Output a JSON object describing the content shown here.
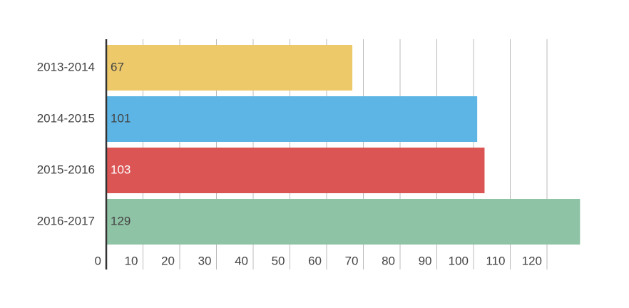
{
  "chart_data": {
    "type": "hbar",
    "categories": [
      "2013-2014",
      "2014-2015",
      "2015-2016",
      "2016-2017"
    ],
    "values": [
      67,
      101,
      103,
      129
    ],
    "colors": [
      "#edc96a",
      "#5db5e5",
      "#db5555",
      "#8fc3a6"
    ],
    "label_colors": [
      "#444444",
      "#444444",
      "#ffffff",
      "#444444"
    ],
    "xlim": [
      0,
      130
    ],
    "xticks": [
      0,
      10,
      20,
      30,
      40,
      50,
      60,
      70,
      80,
      90,
      100,
      110,
      120
    ],
    "grid": true
  }
}
